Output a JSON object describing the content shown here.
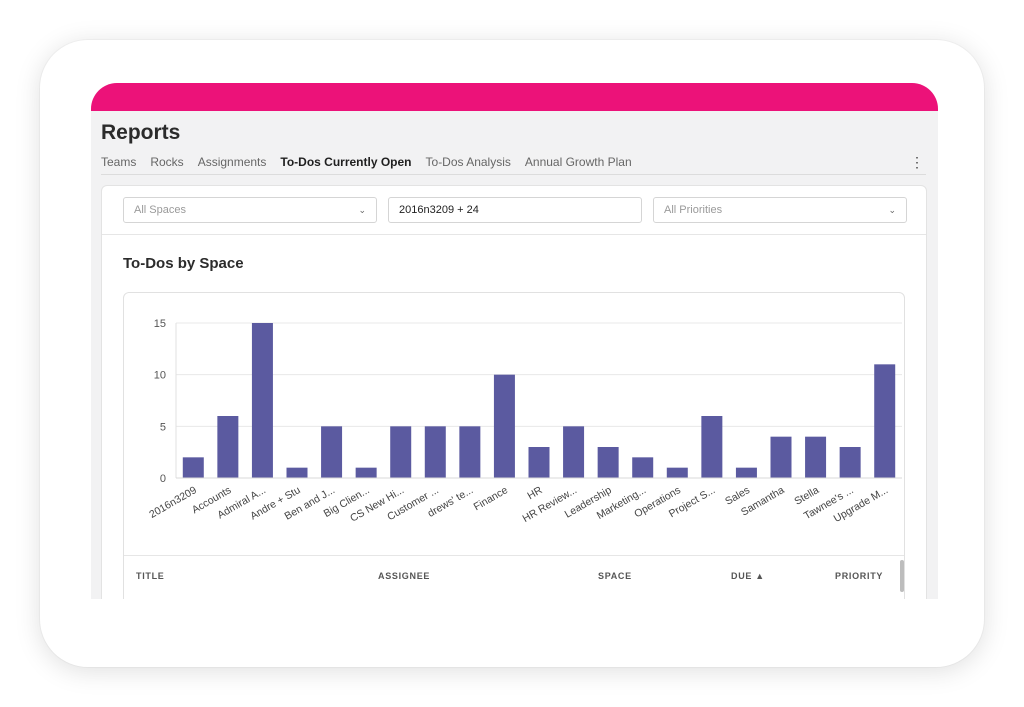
{
  "page": {
    "title": "Reports"
  },
  "tabs": [
    {
      "label": "Teams"
    },
    {
      "label": "Rocks"
    },
    {
      "label": "Assignments"
    },
    {
      "label": "To-Dos Currently Open"
    },
    {
      "label": "To-Dos Analysis"
    },
    {
      "label": "Annual Growth Plan"
    }
  ],
  "active_tab": "To-Dos Currently Open",
  "icons": {
    "menu": "kebab-menu-icon",
    "dropdown": "chevron-down-icon",
    "sort": "sort-ascending-icon"
  },
  "filters": {
    "spaces": {
      "placeholder": "All Spaces"
    },
    "search": {
      "value": "2016n3209 + 24"
    },
    "priorities": {
      "placeholder": "All Priorities"
    }
  },
  "chart_section": {
    "title": "To-Dos by Space"
  },
  "chart_data": {
    "type": "bar",
    "title": "To-Dos by Space",
    "categories": [
      "2016n3209",
      "Accounts",
      "Admiral A...",
      "Andre + Stu",
      "Ben and J...",
      "Big Clien...",
      "CS New Hi...",
      "Customer ...",
      "drews' te...",
      "Finance",
      "HR",
      "HR Review...",
      "Leadership",
      "Marketing...",
      "Operations",
      "Project S...",
      "Sales",
      "Samantha",
      "Stella",
      "Tawnee's ...",
      "Upgrade M..."
    ],
    "values": [
      2,
      6,
      15,
      1,
      5,
      1,
      5,
      5,
      5,
      10,
      3,
      5,
      3,
      2,
      1,
      6,
      1,
      4,
      4,
      3,
      11
    ],
    "yticks": [
      0,
      5,
      10,
      15
    ],
    "ylim": [
      0,
      15
    ],
    "grid": true,
    "bar_color": "#5b5aa0"
  },
  "table": {
    "columns": [
      {
        "label": "TITLE"
      },
      {
        "label": "ASSIGNEE"
      },
      {
        "label": "SPACE"
      },
      {
        "label": "DUE ▲"
      },
      {
        "label": "PRIORITY"
      }
    ]
  },
  "colors": {
    "accent": "#ec1279",
    "bar": "#5b5aa0"
  }
}
